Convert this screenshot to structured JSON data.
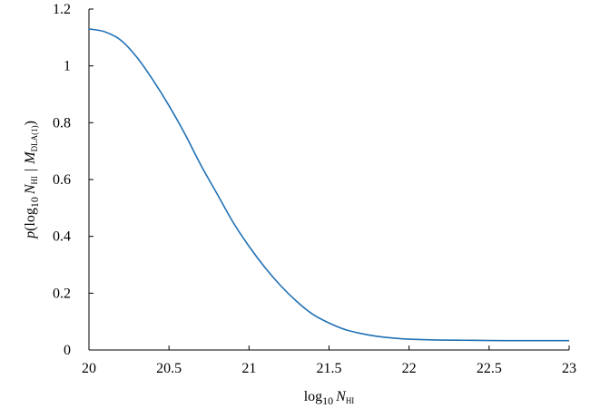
{
  "chart_data": {
    "type": "line",
    "title": "",
    "xlabel": {
      "base": "log",
      "sub1": "10",
      "var": "N",
      "sub2": "HI"
    },
    "ylabel": {
      "func": "p",
      "open": "(log",
      "sub1": "10",
      "var": "N",
      "sub2": "HI",
      "bar": "|",
      "model": "M",
      "sub3": "DLA(1)",
      "close": ")"
    },
    "xlim": [
      20,
      23
    ],
    "ylim": [
      0,
      1.2
    ],
    "xticks": [
      {
        "value": 20,
        "label": "20"
      },
      {
        "value": 20.5,
        "label": "20.5"
      },
      {
        "value": 21,
        "label": "21"
      },
      {
        "value": 21.5,
        "label": "21.5"
      },
      {
        "value": 22,
        "label": "22"
      },
      {
        "value": 22.5,
        "label": "22.5"
      },
      {
        "value": 23,
        "label": "23"
      }
    ],
    "yticks": [
      {
        "value": 0,
        "label": "0"
      },
      {
        "value": 0.2,
        "label": "0.2"
      },
      {
        "value": 0.4,
        "label": "0.4"
      },
      {
        "value": 0.6,
        "label": "0.6"
      },
      {
        "value": 0.8,
        "label": "0.8"
      },
      {
        "value": 1,
        "label": "1"
      },
      {
        "value": 1.2,
        "label": "1.2"
      }
    ],
    "grid": false,
    "series": [
      {
        "color": "#2171b5",
        "x": [
          20.0,
          20.1,
          20.2,
          20.3,
          20.4,
          20.5,
          20.6,
          20.7,
          20.8,
          20.9,
          21.0,
          21.1,
          21.2,
          21.3,
          21.4,
          21.5,
          21.6,
          21.7,
          21.8,
          21.9,
          22.0,
          22.2,
          22.4,
          22.6,
          22.8,
          23.0
        ],
        "y": [
          1.13,
          1.12,
          1.09,
          1.03,
          0.95,
          0.86,
          0.76,
          0.65,
          0.55,
          0.45,
          0.365,
          0.29,
          0.225,
          0.17,
          0.125,
          0.095,
          0.072,
          0.058,
          0.048,
          0.042,
          0.038,
          0.035,
          0.034,
          0.033,
          0.033,
          0.033
        ]
      }
    ]
  }
}
